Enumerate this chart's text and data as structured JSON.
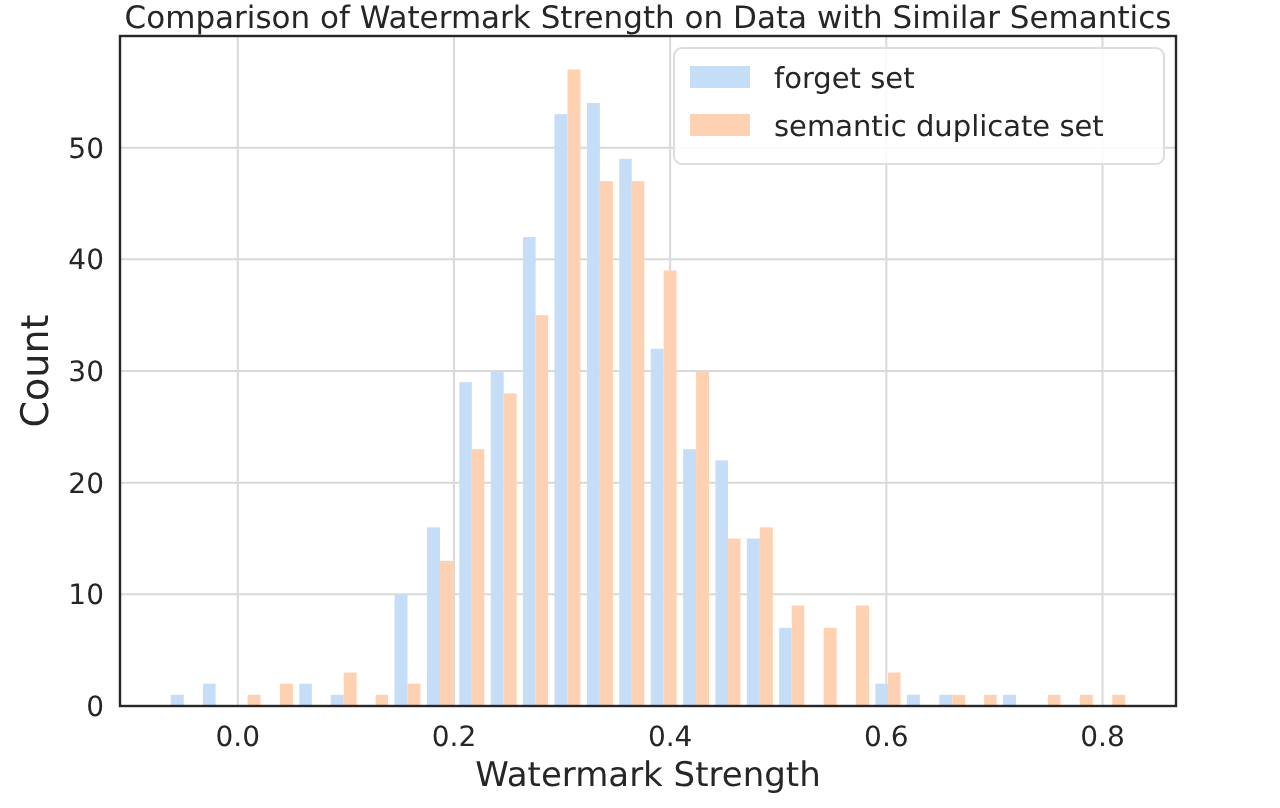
{
  "chart_data": {
    "type": "histogram",
    "title": "Comparison of Watermark Strength on Data with Similar Semantics",
    "xlabel": "Watermark Strength",
    "ylabel": "Count",
    "bins": [
      -0.065,
      -0.035,
      -0.006,
      0.024,
      0.054,
      0.083,
      0.113,
      0.142,
      0.172,
      0.202,
      0.231,
      0.261,
      0.29,
      0.32,
      0.35,
      0.379,
      0.409,
      0.439,
      0.468,
      0.498,
      0.527,
      0.557,
      0.587,
      0.616,
      0.646,
      0.676,
      0.705,
      0.735,
      0.764,
      0.794,
      0.824
    ],
    "series": [
      {
        "name": "forget set",
        "color": "#c5ddf7",
        "values": [
          1,
          2,
          0,
          0,
          2,
          1,
          0,
          10,
          16,
          29,
          30,
          42,
          53,
          54,
          49,
          32,
          23,
          22,
          15,
          7,
          0,
          0,
          2,
          1,
          1,
          0,
          1,
          0,
          0,
          0
        ]
      },
      {
        "name": "semantic duplicate set",
        "color": "#ffd1b3",
        "values": [
          0,
          0,
          1,
          2,
          0,
          3,
          1,
          2,
          13,
          23,
          28,
          35,
          57,
          47,
          47,
          39,
          30,
          15,
          16,
          9,
          7,
          9,
          3,
          0,
          1,
          1,
          0,
          1,
          1,
          1
        ]
      }
    ],
    "xlim": [
      -0.109,
      0.868
    ],
    "xticks": [
      {
        "value": 0,
        "label": "0.0"
      },
      {
        "value": 0.2,
        "label": "0.2"
      },
      {
        "value": 0.4,
        "label": "0.4"
      },
      {
        "value": 0.6,
        "label": "0.6"
      },
      {
        "value": 0.8,
        "label": "0.8"
      }
    ],
    "ylim": [
      0,
      60
    ],
    "yticks": [
      0,
      10,
      20,
      30,
      40,
      50
    ],
    "grid": true,
    "legend": "top right"
  }
}
